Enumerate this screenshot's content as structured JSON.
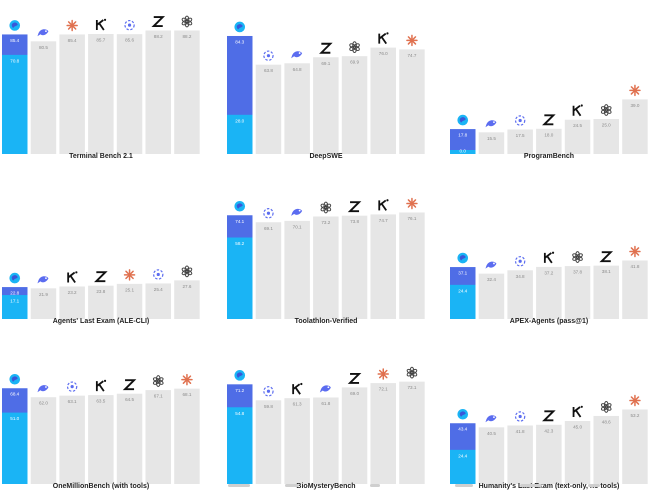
{
  "colors": {
    "bar_gray": "#e6e6e6",
    "highlight_dark": "#4f6de6",
    "highlight_light": "#1ab4f5",
    "value_text_gray": "#8a8a8a",
    "value_text_white": "#ffffff",
    "icon_openai": "#444444",
    "icon_anthropic": "#e0714f",
    "icon_kimi": "#111111",
    "icon_zai": "#111111",
    "icon_fishbird": "#5b6cf0",
    "icon_whale": "#5b6cf0",
    "icon_globe": "#1ab4f5"
  },
  "chart_data": [
    {
      "type": "bar",
      "title": "Terminal Bench 2.1",
      "ylim": [
        0,
        100
      ],
      "categories": [
        "globe-icon",
        "fishbird-icon",
        "anthropic-icon",
        "kimi-icon",
        "whale-icon",
        "zai-icon",
        "openai-icon"
      ],
      "values": [
        85.4,
        80.5,
        85.4,
        85.7,
        85.6,
        88.2,
        88.2
      ],
      "value_labels": [
        "85.4",
        "80.5",
        "85.4",
        "85.7",
        "85.6",
        "88.2",
        "88.2"
      ],
      "highlight_inner": {
        "value": 70.8,
        "label": "70.8"
      }
    },
    {
      "type": "bar",
      "title": "DeepSWE",
      "ylim": [
        0,
        100
      ],
      "categories": [
        "globe-icon",
        "whale-icon",
        "fishbird-icon",
        "zai-icon",
        "openai-icon",
        "kimi-icon",
        "anthropic-icon"
      ],
      "values": [
        84.3,
        63.8,
        64.8,
        69.1,
        69.9,
        76.0,
        74.7
      ],
      "value_labels": [
        "84.3",
        "63.8",
        "64.8",
        "69.1",
        "69.9",
        "76.0",
        "74.7"
      ],
      "highlight_inner": {
        "value": 28.0,
        "label": "28.0"
      }
    },
    {
      "type": "bar",
      "title": "ProgramBench",
      "ylim": [
        0,
        100
      ],
      "categories": [
        "globe-icon",
        "fishbird-icon",
        "whale-icon",
        "zai-icon",
        "kimi-icon",
        "openai-icon",
        "anthropic-icon"
      ],
      "values": [
        17.8,
        15.5,
        17.5,
        18.0,
        24.5,
        25.0,
        39.0
      ],
      "value_labels": [
        "17.8",
        "15.5",
        "17.5",
        "18.0",
        "24.5",
        "25.0",
        "39.0"
      ],
      "highlight_inner": {
        "value": 0.0,
        "label": "0.0"
      }
    },
    {
      "type": "bar",
      "title": "Agents' Last Exam (ALE-CLI)",
      "ylim": [
        0,
        100
      ],
      "categories": [
        "globe-icon",
        "fishbird-icon",
        "kimi-icon",
        "zai-icon",
        "anthropic-icon",
        "whale-icon",
        "openai-icon"
      ],
      "values": [
        22.8,
        21.9,
        23.2,
        23.8,
        25.1,
        25.4,
        27.6
      ],
      "value_labels": [
        "22.8",
        "21.9",
        "23.2",
        "23.8",
        "25.1",
        "25.4",
        "27.6"
      ],
      "highlight_inner": {
        "value": 17.1,
        "label": "17.1"
      }
    },
    {
      "type": "bar",
      "title": "Toolathlon-Verified",
      "ylim": [
        0,
        100
      ],
      "categories": [
        "globe-icon",
        "whale-icon",
        "fishbird-icon",
        "openai-icon",
        "zai-icon",
        "kimi-icon",
        "anthropic-icon"
      ],
      "values": [
        74.1,
        69.1,
        70.1,
        73.2,
        73.8,
        74.7,
        76.1
      ],
      "value_labels": [
        "74.1",
        "69.1",
        "70.1",
        "73.2",
        "73.8",
        "74.7",
        "76.1"
      ],
      "highlight_inner": {
        "value": 58.2,
        "label": "58.2"
      }
    },
    {
      "type": "bar",
      "title": "APEX-Agents (pass@1)",
      "ylim": [
        0,
        100
      ],
      "categories": [
        "globe-icon",
        "fishbird-icon",
        "whale-icon",
        "kimi-icon",
        "openai-icon",
        "zai-icon",
        "anthropic-icon"
      ],
      "values": [
        37.1,
        32.4,
        34.8,
        37.2,
        37.8,
        38.1,
        41.8
      ],
      "value_labels": [
        "37.1",
        "32.4",
        "34.8",
        "37.2",
        "37.8",
        "38.1",
        "41.8"
      ],
      "highlight_inner": {
        "value": 24.4,
        "label": "24.4"
      }
    },
    {
      "type": "bar",
      "title": "OneMillionBench (with tools)",
      "ylim": [
        0,
        100
      ],
      "categories": [
        "globe-icon",
        "fishbird-icon",
        "whale-icon",
        "kimi-icon",
        "zai-icon",
        "openai-icon",
        "anthropic-icon"
      ],
      "values": [
        68.4,
        62.0,
        63.1,
        63.5,
        64.5,
        67.1,
        68.1
      ],
      "value_labels": [
        "68.4",
        "62.0",
        "63.1",
        "63.5",
        "64.5",
        "67.1",
        "68.1"
      ],
      "highlight_inner": {
        "value": 51.0,
        "label": "51.0"
      }
    },
    {
      "type": "bar",
      "title": "BioMysteryBench",
      "ylim": [
        0,
        100
      ],
      "categories": [
        "globe-icon",
        "whale-icon",
        "kimi-icon",
        "fishbird-icon",
        "zai-icon",
        "anthropic-icon",
        "openai-icon"
      ],
      "values": [
        71.2,
        59.8,
        61.3,
        61.8,
        69.0,
        72.1,
        73.1
      ],
      "value_labels": [
        "71.2",
        "59.8",
        "61.3",
        "61.8",
        "69.0",
        "72.1",
        "73.1"
      ],
      "highlight_inner": {
        "value": 54.8,
        "label": "54.8"
      }
    },
    {
      "type": "bar",
      "title": "Humanity's Last Exam (text-only, no tools)",
      "ylim": [
        0,
        100
      ],
      "categories": [
        "globe-icon",
        "fishbird-icon",
        "whale-icon",
        "zai-icon",
        "kimi-icon",
        "openai-icon",
        "anthropic-icon"
      ],
      "values": [
        43.4,
        40.5,
        41.8,
        42.3,
        45.0,
        48.6,
        53.2
      ],
      "value_labels": [
        "43.4",
        "40.5",
        "41.8",
        "42.3",
        "45.0",
        "48.6",
        "53.2"
      ],
      "highlight_inner": {
        "value": 24.4,
        "label": "24.4"
      }
    }
  ]
}
